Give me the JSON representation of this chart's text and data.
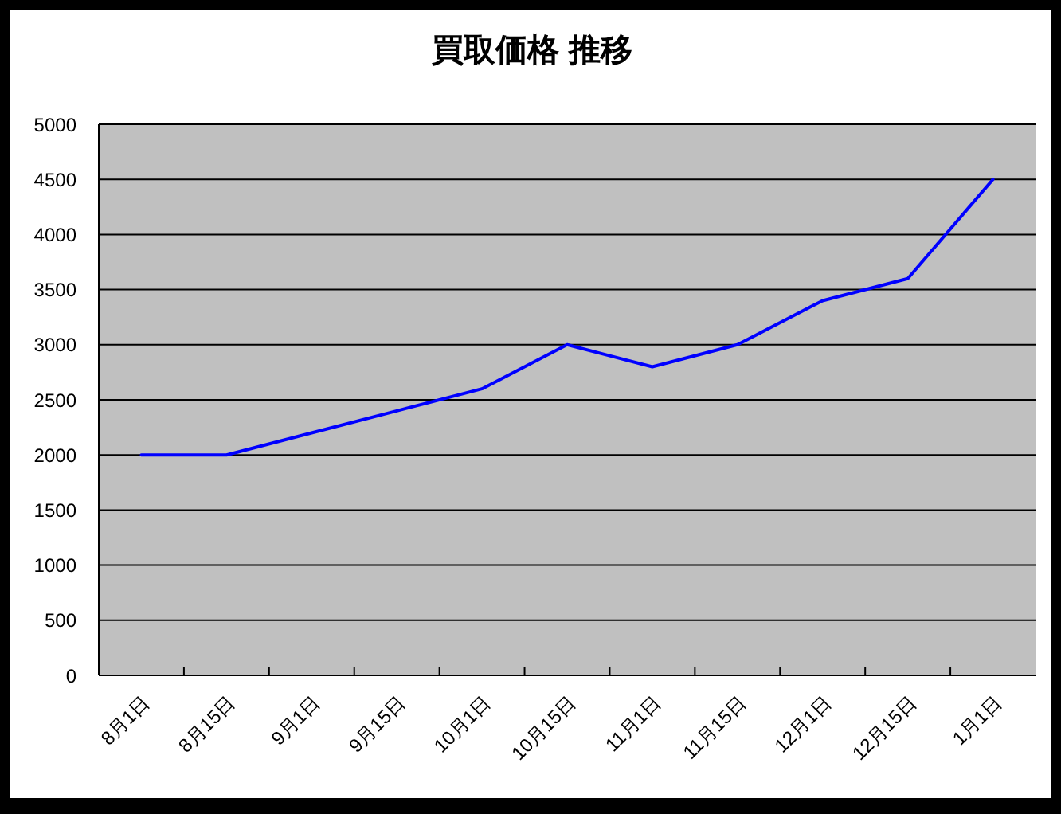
{
  "chart_data": {
    "type": "line",
    "title": "買取価格 推移",
    "categories": [
      "8月1日",
      "8月15日",
      "9月1日",
      "9月15日",
      "10月1日",
      "10月15日",
      "11月1日",
      "11月15日",
      "12月1日",
      "12月15日",
      "1月1日"
    ],
    "series": [
      {
        "color": "#0000ff",
        "values": [
          2000,
          2000,
          2200,
          2400,
          2600,
          3000,
          2800,
          3000,
          3400,
          3600,
          4500
        ]
      }
    ],
    "ylim": [
      0,
      5000
    ],
    "yticks": [
      0,
      500,
      1000,
      1500,
      2000,
      2500,
      3000,
      3500,
      4000,
      4500,
      5000
    ],
    "grid": "y"
  }
}
